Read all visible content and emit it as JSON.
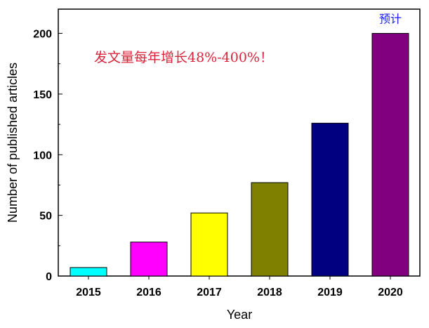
{
  "chart_data": {
    "type": "bar",
    "categories": [
      "2015",
      "2016",
      "2017",
      "2018",
      "2019",
      "2020"
    ],
    "values": [
      7,
      28,
      52,
      77,
      126,
      200
    ],
    "colors": [
      "#00ffff",
      "#ff00ff",
      "#ffff00",
      "#808000",
      "#000080",
      "#800080"
    ],
    "xlabel": "Year",
    "ylabel": "Number of published articles",
    "ylim": [
      0,
      220
    ],
    "yticks": [
      0,
      50,
      100,
      150,
      200
    ],
    "grid": false,
    "annotation": "发文量每年增长48%-400%！",
    "bar_note": "预计",
    "bar_note_category": "2020"
  }
}
